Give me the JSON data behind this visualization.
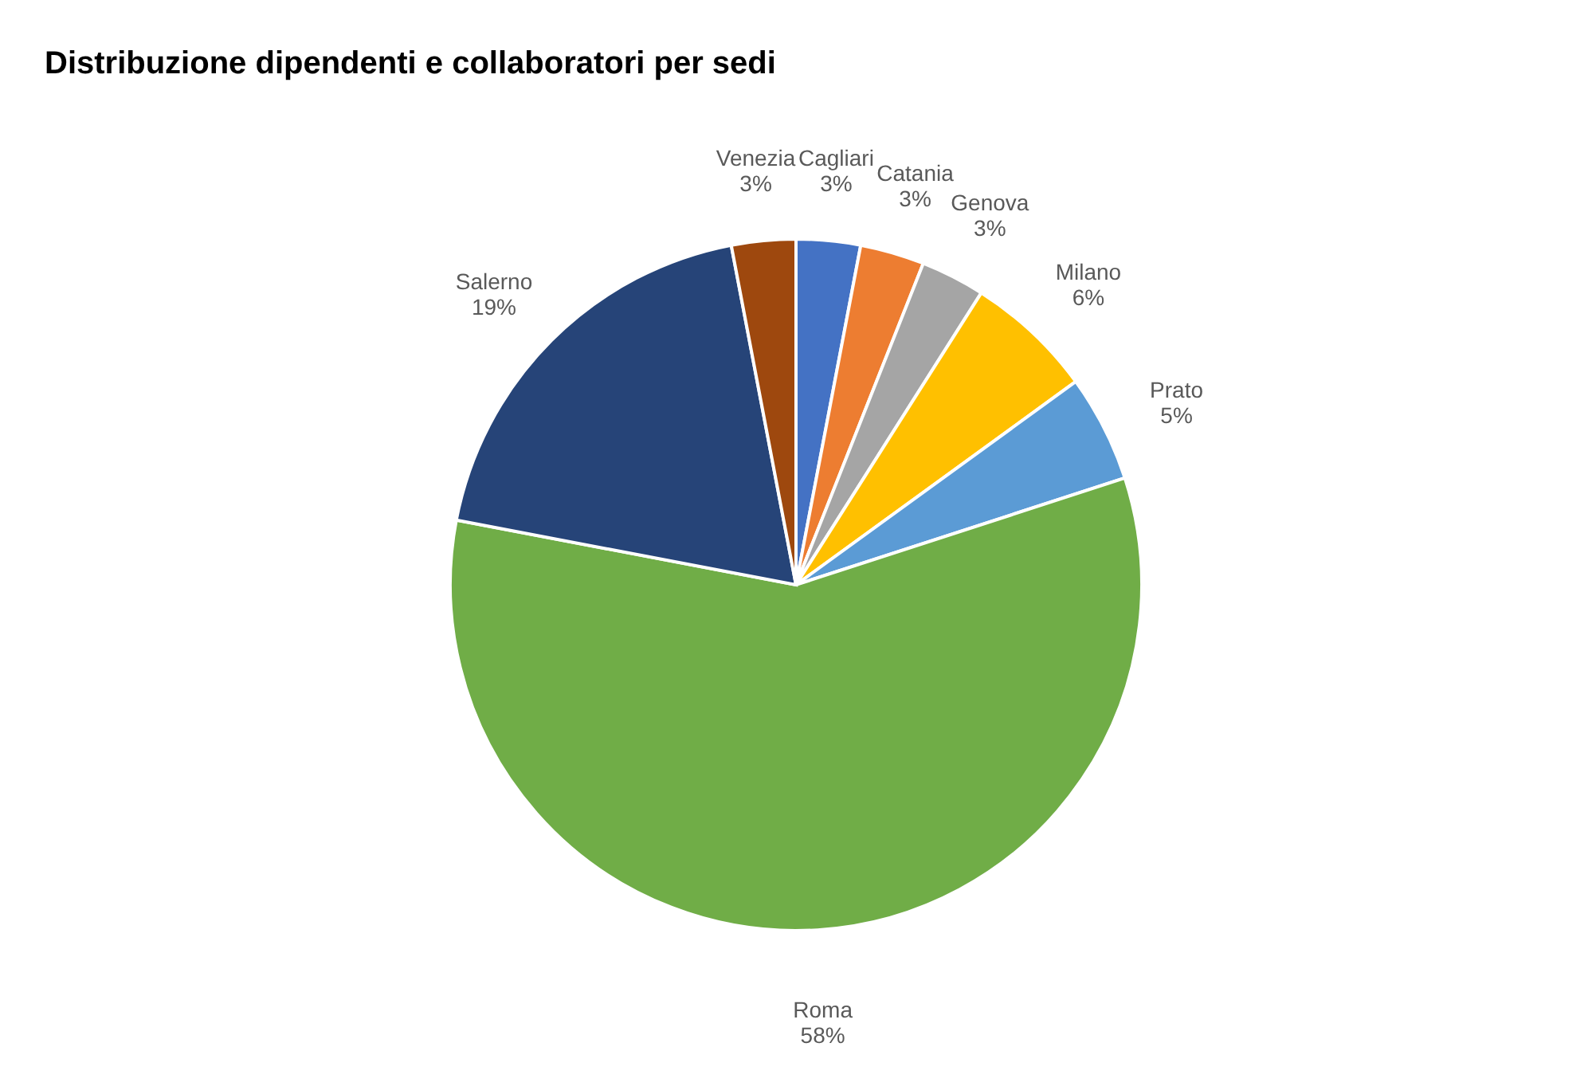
{
  "chart_data": {
    "type": "pie",
    "title": "Distribuzione dipendenti e collaboratori per sedi",
    "categories": [
      "Cagliari",
      "Catania",
      "Genova",
      "Milano",
      "Prato",
      "Roma",
      "Salerno",
      "Venezia"
    ],
    "values": [
      3,
      3,
      3,
      6,
      5,
      58,
      19,
      3
    ],
    "value_labels": [
      "3%",
      "3%",
      "3%",
      "6%",
      "5%",
      "58%",
      "19%",
      "3%"
    ],
    "colors": [
      "#4472c4",
      "#ed7d31",
      "#a5a5a5",
      "#ffc000",
      "#5b9bd5",
      "#70ad47",
      "#264478",
      "#9e480e"
    ],
    "legend": false
  }
}
